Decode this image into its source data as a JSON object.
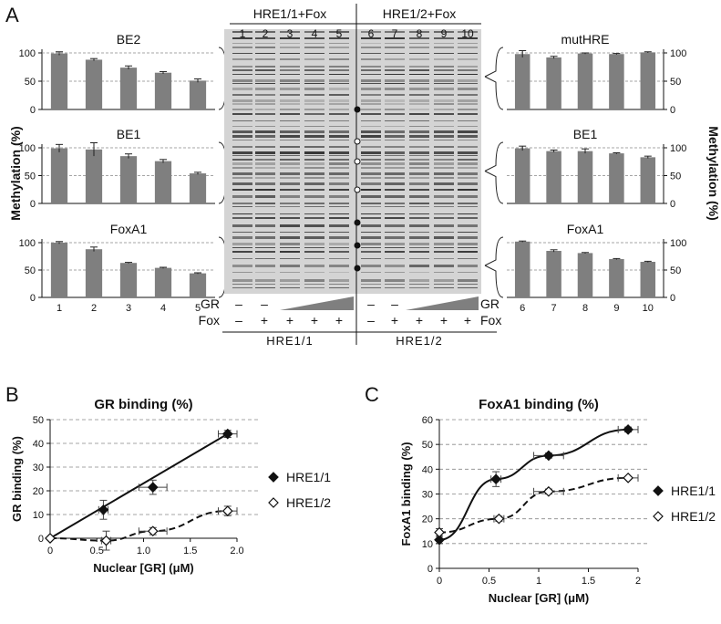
{
  "panel_labels": {
    "a": "A",
    "b": "B",
    "c": "C"
  },
  "gel": {
    "group_left": "HRE1/1+Fox",
    "group_right": "HRE1/2+Fox",
    "lanes": [
      "1",
      "2",
      "3",
      "4",
      "5",
      "6",
      "7",
      "8",
      "9",
      "10"
    ],
    "gr_label": "GR",
    "fox_label": "Fox",
    "gr_row_left": [
      "–",
      "–"
    ],
    "gr_row_right": [
      "–",
      "–"
    ],
    "fox_row_left": [
      "–",
      "+",
      "+",
      "+",
      "+"
    ],
    "fox_row_right": [
      "–",
      "+",
      "+",
      "+",
      "+"
    ],
    "bottom_left": "HRE1/1",
    "bottom_right": "HRE1/2"
  },
  "panel_a": {
    "ylabel": "Methylation (%)",
    "ylabel_left": "Methylation (%)",
    "ylabel_right": "Methylation   (%)"
  },
  "chart_data": [
    {
      "type": "bar",
      "panel": "A-left-1",
      "title": "BE2",
      "categories": [
        "1",
        "2",
        "3",
        "4",
        "5"
      ],
      "values": [
        99,
        88,
        74,
        65,
        51
      ],
      "errors": [
        3,
        2,
        3,
        2,
        3
      ],
      "ylim": [
        0,
        100
      ],
      "yticks": [
        "0",
        "50",
        "100"
      ],
      "color": "#7f7f7f"
    },
    {
      "type": "bar",
      "panel": "A-left-2",
      "title": "BE1",
      "categories": [
        "1",
        "2",
        "3",
        "4",
        "5"
      ],
      "values": [
        99,
        97,
        85,
        76,
        54
      ],
      "errors": [
        7,
        12,
        4,
        3,
        2
      ],
      "ylim": [
        0,
        100
      ],
      "yticks": [
        "0",
        "50",
        "100"
      ],
      "color": "#7f7f7f"
    },
    {
      "type": "bar",
      "panel": "A-left-3",
      "title": "FoxA1",
      "categories": [
        "1",
        "2",
        "3",
        "4",
        "5"
      ],
      "values": [
        100,
        88,
        63,
        54,
        44
      ],
      "errors": [
        2,
        4,
        1,
        1,
        1
      ],
      "ylim": [
        0,
        100
      ],
      "yticks": [
        "0",
        "50",
        "100"
      ],
      "xticks": [
        "1",
        "2",
        "3",
        "4",
        "5"
      ],
      "color": "#7f7f7f"
    },
    {
      "type": "bar",
      "panel": "A-right-1",
      "title": "mutHRE",
      "categories": [
        "6",
        "7",
        "8",
        "9",
        "10"
      ],
      "values": [
        98,
        92,
        99,
        98,
        101
      ],
      "errors": [
        6,
        2,
        1,
        1,
        1
      ],
      "ylim": [
        0,
        100
      ],
      "yticks": [
        "0",
        "50",
        "100"
      ],
      "color": "#7f7f7f"
    },
    {
      "type": "bar",
      "panel": "A-right-2",
      "title": "BE1",
      "categories": [
        "6",
        "7",
        "8",
        "9",
        "10"
      ],
      "values": [
        99,
        94,
        94,
        90,
        83
      ],
      "errors": [
        4,
        2,
        4,
        1,
        2
      ],
      "ylim": [
        0,
        100
      ],
      "yticks": [
        "0",
        "50",
        "100"
      ],
      "color": "#7f7f7f"
    },
    {
      "type": "bar",
      "panel": "A-right-3",
      "title": "FoxA1",
      "categories": [
        "6",
        "7",
        "8",
        "9",
        "10"
      ],
      "values": [
        102,
        85,
        81,
        70,
        65
      ],
      "errors": [
        1,
        2,
        1,
        1,
        1
      ],
      "ylim": [
        0,
        100
      ],
      "yticks": [
        "0",
        "50",
        "100"
      ],
      "xticks": [
        "6",
        "7",
        "8",
        "9",
        "10"
      ],
      "color": "#7f7f7f"
    },
    {
      "type": "scatter",
      "panel": "B",
      "title": "GR binding (%)",
      "xlabel": "Nuclear [GR] (μM)",
      "ylabel": "GR binding (%)",
      "xlim": [
        0,
        2.0
      ],
      "ylim": [
        0,
        50
      ],
      "xticks": [
        "0",
        "0.5",
        "1.0",
        "1.5",
        "2.0"
      ],
      "yticks": [
        "0",
        "10",
        "20",
        "30",
        "40",
        "50"
      ],
      "grid": true,
      "legend": "right",
      "series": [
        {
          "name": "HRE1/1",
          "marker": "filled-diamond",
          "line": "solid",
          "x": [
            0,
            0.57,
            1.1,
            1.9
          ],
          "y": [
            0,
            12,
            21.5,
            44
          ],
          "xerr": [
            0,
            0.05,
            0.15,
            0.1
          ],
          "yerr": [
            0,
            4,
            3,
            1.5
          ]
        },
        {
          "name": "HRE1/2",
          "marker": "open-diamond",
          "line": "dashed",
          "x": [
            0,
            0.6,
            1.1,
            1.9
          ],
          "y": [
            0,
            -1,
            3,
            11.5
          ],
          "xerr": [
            0,
            0.05,
            0.15,
            0.1
          ],
          "yerr": [
            0,
            4,
            1.5,
            2
          ]
        }
      ]
    },
    {
      "type": "scatter",
      "panel": "C",
      "title": "FoxA1 binding (%)",
      "xlabel": "Nuclear [GR] (μM)",
      "ylabel": "FoxA1 binding (%)",
      "xlim": [
        0,
        2
      ],
      "ylim": [
        0,
        60
      ],
      "xticks": [
        "0",
        "0.5",
        "1",
        "1.5",
        "2"
      ],
      "yticks": [
        "0",
        "10",
        "20",
        "30",
        "40",
        "50",
        "60"
      ],
      "grid": true,
      "legend": "right",
      "series": [
        {
          "name": "HRE1/1",
          "marker": "filled-diamond",
          "line": "solid",
          "x": [
            0,
            0.57,
            1.1,
            1.9
          ],
          "y": [
            11.5,
            36,
            45.5,
            56
          ],
          "xerr": [
            0,
            0.05,
            0.15,
            0.1
          ],
          "yerr": [
            1.5,
            3,
            1,
            1
          ]
        },
        {
          "name": "HRE1/2",
          "marker": "open-diamond",
          "line": "dashed",
          "x": [
            0,
            0.6,
            1.1,
            1.9
          ],
          "y": [
            14.5,
            20,
            31,
            36.5
          ],
          "xerr": [
            0,
            0.05,
            0.15,
            0.1
          ],
          "yerr": [
            1.5,
            1,
            1,
            0.5
          ]
        }
      ]
    }
  ]
}
